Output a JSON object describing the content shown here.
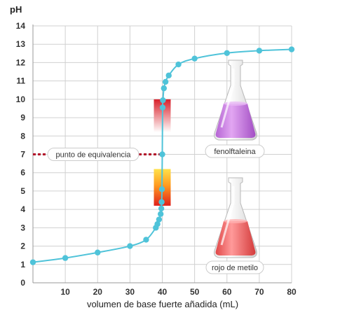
{
  "chart_data": {
    "type": "line",
    "title": "",
    "xlabel": "volumen de base fuerte añadida (mL)",
    "ylabel": "pH",
    "xlim": [
      0,
      80
    ],
    "ylim": [
      0,
      14
    ],
    "xticks": [
      10,
      20,
      30,
      40,
      50,
      60,
      70,
      80
    ],
    "yticks": [
      0,
      1,
      2,
      3,
      4,
      5,
      6,
      7,
      8,
      9,
      10,
      11,
      12,
      13,
      14
    ],
    "grid": true,
    "series": [
      {
        "color": "#4fc3d9",
        "points": [
          [
            0,
            1.12
          ],
          [
            10,
            1.35
          ],
          [
            20,
            1.65
          ],
          [
            30,
            2.0
          ],
          [
            35,
            2.35
          ],
          [
            38,
            3.0
          ],
          [
            38.5,
            3.2
          ],
          [
            39,
            3.45
          ],
          [
            39.5,
            3.75
          ],
          [
            39.7,
            4.05
          ],
          [
            39.8,
            4.4
          ],
          [
            39.9,
            5.1
          ],
          [
            40,
            7.0
          ],
          [
            40.1,
            9.55
          ],
          [
            40.2,
            9.95
          ],
          [
            40.5,
            10.6
          ],
          [
            41,
            10.95
          ],
          [
            42,
            11.3
          ],
          [
            45,
            11.9
          ],
          [
            50,
            12.22
          ],
          [
            60,
            12.52
          ],
          [
            70,
            12.65
          ],
          [
            80,
            12.72
          ]
        ]
      }
    ],
    "annotations": {
      "equivalence_label": "punto de equivalencia",
      "equivalence_ph": 7,
      "equivalence_volume": 40,
      "indicators": [
        {
          "name": "fenolftaleina",
          "ph_range": [
            8.2,
            10
          ],
          "liquid_color": "#c57be0"
        },
        {
          "name": "rojo de metilo",
          "ph_range": [
            4.2,
            6.2
          ],
          "liquid_color": "#ec5d5d"
        }
      ]
    }
  }
}
